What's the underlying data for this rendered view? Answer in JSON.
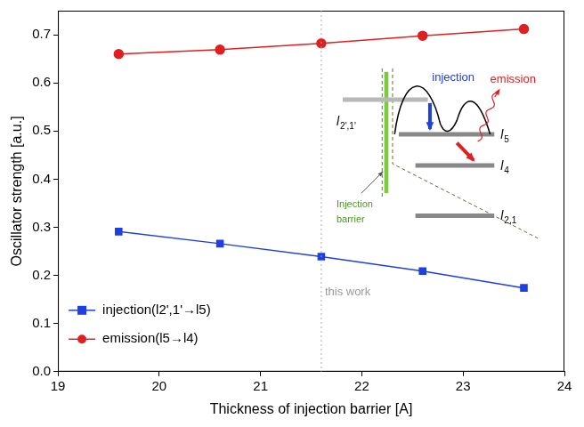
{
  "chart_data": {
    "type": "line",
    "x_label": "Thickness of injection barrier [A]",
    "y_label": "Oscillator strength [a.u.]",
    "x": [
      19.6,
      20.6,
      21.6,
      22.6,
      23.6
    ],
    "series": [
      {
        "name": "injection(l2',1'→l5)",
        "color": "#1f3fe0",
        "marker": "square",
        "values": [
          0.291,
          0.266,
          0.239,
          0.209,
          0.174
        ]
      },
      {
        "name": "emission(l5→l4)",
        "color": "#e02020",
        "marker": "circle",
        "values": [
          0.66,
          0.669,
          0.682,
          0.698,
          0.712
        ]
      }
    ],
    "xlim": [
      19,
      24
    ],
    "xticks": [
      19,
      20,
      21,
      22,
      23,
      24
    ],
    "ylim": [
      0,
      0.75
    ],
    "yticks": [
      {
        "value": 0,
        "label": "0.0"
      },
      {
        "value": 0.1,
        "label": "0.1"
      },
      {
        "value": 0.2,
        "label": "0.2"
      },
      {
        "value": 0.3,
        "label": "0.3"
      },
      {
        "value": 0.4,
        "label": "0.4"
      },
      {
        "value": 0.5,
        "label": "0.5"
      },
      {
        "value": 0.6,
        "label": "0.6"
      },
      {
        "value": 0.7,
        "label": "0.7"
      }
    ],
    "grid": false,
    "legend": "lower left",
    "annotations": [
      {
        "text": "this work",
        "x": 21.6
      }
    ],
    "inset": {
      "injection_label": "injection",
      "emission_label": "emission",
      "barrier_label": "Injection barrier",
      "levels": [
        "l2',1'",
        "l5",
        "l4",
        "l2,1"
      ]
    }
  }
}
